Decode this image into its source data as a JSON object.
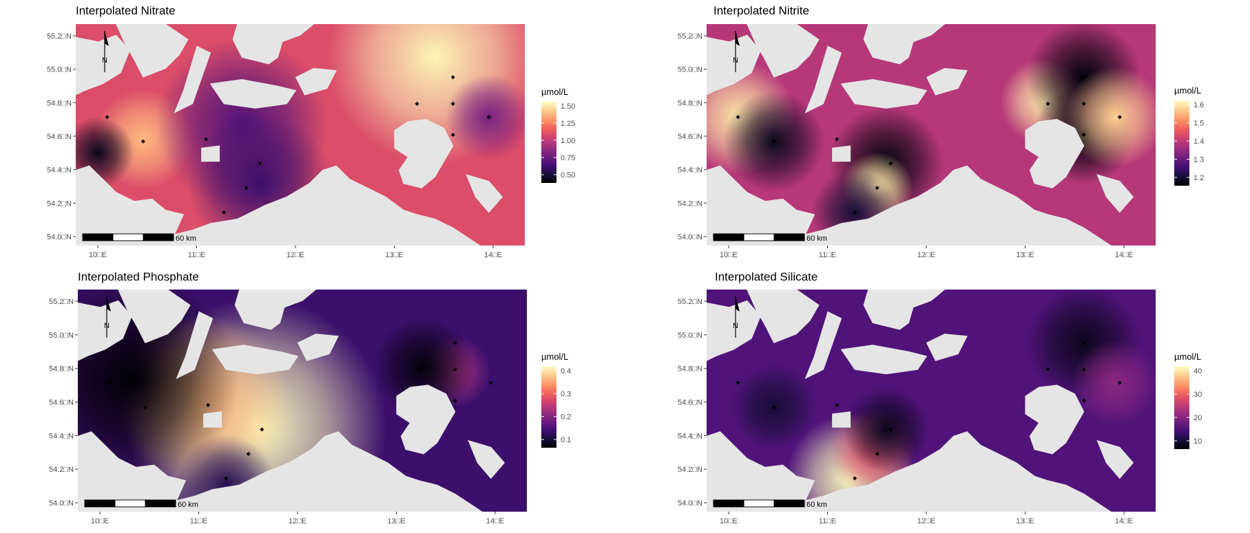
{
  "panels": [
    {
      "title": "Interpolated Nitrate",
      "legend_title": "µmol/L",
      "legend_ticks": [
        "1.50",
        "1.25",
        "1.00",
        "0.75",
        "0.50"
      ],
      "y_ticks": [
        "55.2□N",
        "55.0□N",
        "54.8□N",
        "54.6□N",
        "54.4□N",
        "54.2□N",
        "54.0□N"
      ],
      "x_ticks": [
        "10□E",
        "11□E",
        "12□E",
        "13□E",
        "14□E"
      ],
      "scale_label": "60 km",
      "north_label": "N",
      "colormap": "magma",
      "sea_level": 0.6,
      "hotspots": [
        {
          "x": 0.15,
          "y": 0.52,
          "v": 0.85,
          "r": 0.07
        },
        {
          "x": 0.05,
          "y": 0.58,
          "v": 0.05,
          "r": 0.05
        },
        {
          "x": 0.37,
          "y": 0.45,
          "v": 0.25,
          "r": 0.12
        },
        {
          "x": 0.41,
          "y": 0.72,
          "v": 0.2,
          "r": 0.1
        },
        {
          "x": 0.8,
          "y": 0.15,
          "v": 0.98,
          "r": 0.15
        },
        {
          "x": 0.92,
          "y": 0.42,
          "v": 0.35,
          "r": 0.06
        }
      ]
    },
    {
      "title": "Interpolated Nitrite",
      "legend_title": "µmol/L",
      "legend_ticks": [
        "1.6",
        "1.5",
        "1.4",
        "1.3",
        "1.2"
      ],
      "y_ticks": [
        "55.2□N",
        "55.0□N",
        "54.8□N",
        "54.6□N",
        "54.4□N",
        "54.2□N",
        "54.0□N"
      ],
      "x_ticks": [
        "10□E",
        "11□E",
        "12□E",
        "13□E",
        "14□E"
      ],
      "scale_label": "60 km",
      "north_label": "N",
      "colormap": "magma",
      "sea_level": 0.5,
      "hotspots": [
        {
          "x": 0.07,
          "y": 0.42,
          "v": 0.95,
          "r": 0.08
        },
        {
          "x": 0.15,
          "y": 0.53,
          "v": 0.05,
          "r": 0.07
        },
        {
          "x": 0.4,
          "y": 0.63,
          "v": 0.02,
          "r": 0.08
        },
        {
          "x": 0.38,
          "y": 0.74,
          "v": 0.95,
          "r": 0.05
        },
        {
          "x": 0.33,
          "y": 0.85,
          "v": 0.1,
          "r": 0.06
        },
        {
          "x": 0.75,
          "y": 0.35,
          "v": 0.95,
          "r": 0.06
        },
        {
          "x": 0.84,
          "y": 0.24,
          "v": 0.02,
          "r": 0.08
        },
        {
          "x": 0.84,
          "y": 0.5,
          "v": 0.02,
          "r": 0.07
        },
        {
          "x": 0.91,
          "y": 0.42,
          "v": 0.9,
          "r": 0.07
        }
      ]
    },
    {
      "title": "Interpolated Phosphate",
      "legend_title": "µmol/L",
      "legend_ticks": [
        "0.4",
        "0.3",
        "0.2",
        "0.1"
      ],
      "y_ticks": [
        "55.2□N",
        "55.0□N",
        "54.8□N",
        "54.6□N",
        "54.4□N",
        "54.2□N",
        "54.0□N"
      ],
      "x_ticks": [
        "10□E",
        "11□E",
        "12□E",
        "13□E",
        "14□E"
      ],
      "scale_label": "60 km",
      "north_label": "N",
      "colormap": "magma",
      "sea_level": 0.2,
      "hotspots": [
        {
          "x": 0.4,
          "y": 0.62,
          "v": 1.0,
          "r": 0.18
        },
        {
          "x": 0.28,
          "y": 0.5,
          "v": 0.85,
          "r": 0.12
        },
        {
          "x": 0.12,
          "y": 0.4,
          "v": 0.0,
          "r": 0.15
        },
        {
          "x": 0.33,
          "y": 0.88,
          "v": 0.15,
          "r": 0.07
        },
        {
          "x": 0.84,
          "y": 0.37,
          "v": 0.45,
          "r": 0.05
        },
        {
          "x": 0.77,
          "y": 0.35,
          "v": 0.02,
          "r": 0.07
        }
      ]
    },
    {
      "title": "Interpolated Silicate",
      "legend_title": "µmol/L",
      "legend_ticks": [
        "40",
        "30",
        "20",
        "10"
      ],
      "y_ticks": [
        "55.2□N",
        "55.0□N",
        "54.8□N",
        "54.6□N",
        "54.4□N",
        "54.2□N",
        "54.0□N"
      ],
      "x_ticks": [
        "10□E",
        "11□E",
        "12□E",
        "13□E",
        "14□E"
      ],
      "scale_label": "60 km",
      "north_label": "N",
      "colormap": "magma",
      "sea_level": 0.25,
      "hotspots": [
        {
          "x": 0.32,
          "y": 0.85,
          "v": 1.0,
          "r": 0.09
        },
        {
          "x": 0.37,
          "y": 0.73,
          "v": 0.6,
          "r": 0.06
        },
        {
          "x": 0.4,
          "y": 0.63,
          "v": 0.05,
          "r": 0.06
        },
        {
          "x": 0.15,
          "y": 0.53,
          "v": 0.1,
          "r": 0.06
        },
        {
          "x": 0.84,
          "y": 0.24,
          "v": 0.05,
          "r": 0.08
        },
        {
          "x": 0.91,
          "y": 0.42,
          "v": 0.4,
          "r": 0.06
        }
      ]
    }
  ]
}
